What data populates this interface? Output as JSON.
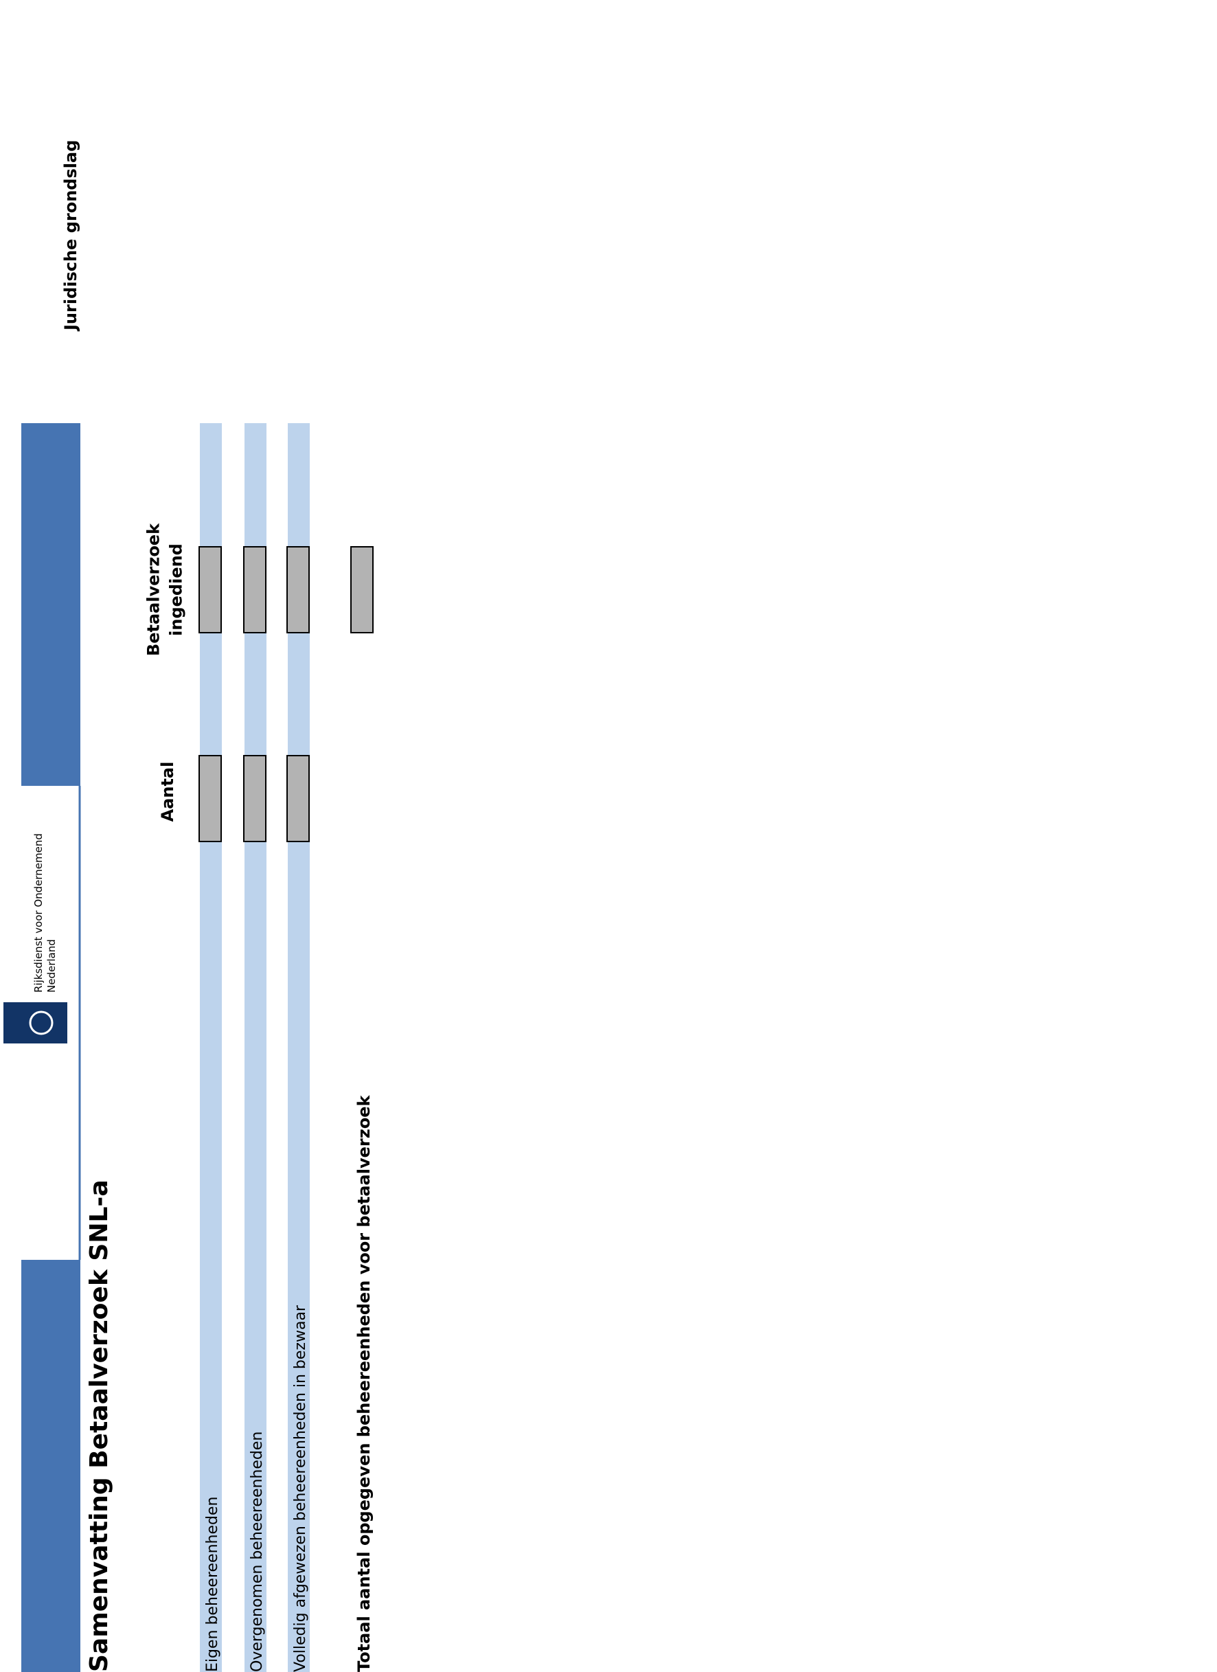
{
  "header": {
    "logo_lines": [
      "Rijksdienst voor Ondernemend",
      "Nederland"
    ],
    "title": "Samenvatting Betaalverzoek SNL-a",
    "legal_basis": "Juridische grondslag"
  },
  "table": {
    "columns": [
      [
        "Aantal"
      ],
      [
        "Betaalverzoek",
        "ingediend"
      ]
    ],
    "rows": [
      "Eigen beheereenheden",
      "Overgenomen beheereenheden",
      "Volledig afgewezen beheereenheden in bezwaar"
    ],
    "total": "Totaal aantal opgegeven beheereenheden voor betaalverzoek"
  }
}
